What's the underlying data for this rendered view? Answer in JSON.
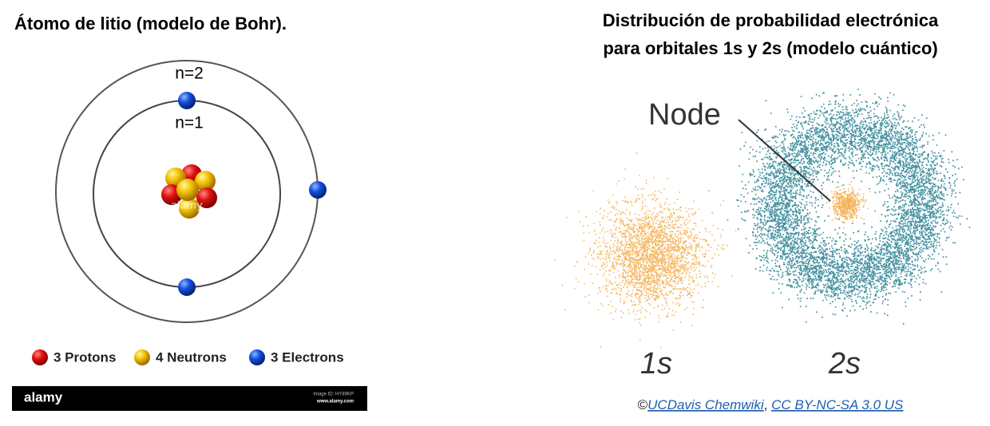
{
  "left": {
    "title": "Átomo de litio (modelo de Bohr).",
    "orbit_labels": [
      "n=2",
      "n=1"
    ],
    "watermark": "alamy",
    "legend": [
      "3 Protons",
      "4 Neutrons",
      "3 Electrons"
    ],
    "footer": {
      "brand": "alamy",
      "image_id": "Image ID: HY89KP",
      "site": "www.alamy.com"
    }
  },
  "right": {
    "title_lines": [
      "Distribución de probabilidad electrónica",
      "para orbitales 1s y 2s (modelo cuántico)"
    ],
    "node_label": "Node",
    "orbital_labels": [
      "1s",
      "2s"
    ],
    "credit": {
      "prefix": "©",
      "source": "UCDavis Chemwiki",
      "separator": ",",
      "license": "CC BY-NC-SA 3.0 US"
    }
  }
}
